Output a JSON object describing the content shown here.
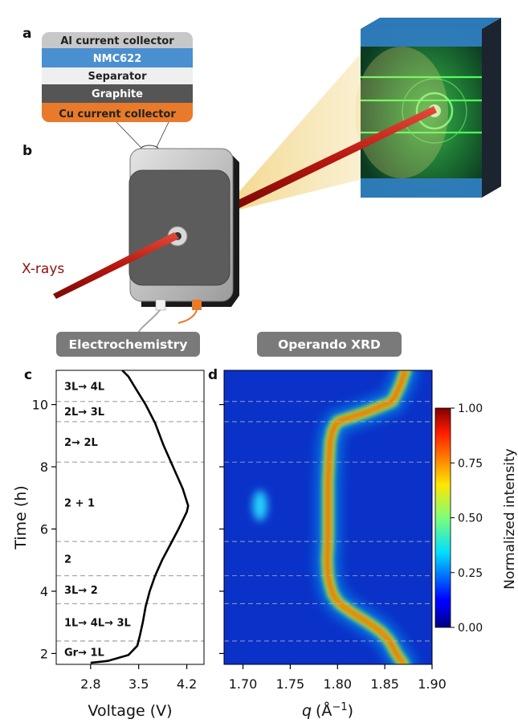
{
  "panels": {
    "a": "a",
    "b": "b",
    "c": "c",
    "d": "d"
  },
  "cell_stack": {
    "layers": [
      {
        "label": "Al current collector",
        "color": "#c8c8c8",
        "text_color": "#222222"
      },
      {
        "label": "NMC622",
        "color": "#4a8fd0",
        "text_color": "#ffffff"
      },
      {
        "label": "Separator",
        "color": "#efefef",
        "text_color": "#222222"
      },
      {
        "label": "Graphite",
        "color": "#555555",
        "text_color": "#ffffff"
      },
      {
        "label": "Cu current collector",
        "color": "#e87a2a",
        "text_color": "#222222"
      }
    ]
  },
  "labels": {
    "xrays": "X-rays",
    "electrochemistry": "Electrochemistry",
    "operando_xrd": "Operando XRD"
  },
  "chart_data": [
    {
      "type": "line",
      "panel": "c",
      "xlabel": "Voltage (V)",
      "ylabel": "Time (h)",
      "xlim": [
        2.3,
        4.45
      ],
      "ylim": [
        1.65,
        11.1
      ],
      "xticks": [
        "2.8",
        "3.5",
        "4.2"
      ],
      "yticks": [
        "2",
        "4",
        "6",
        "8",
        "10"
      ],
      "series": [
        {
          "x": [
            2.8,
            3.05,
            3.35,
            3.48,
            3.52,
            3.56,
            3.6,
            3.66,
            3.74,
            3.84,
            3.96,
            4.08,
            4.2,
            4.22,
            4.14,
            4.0,
            3.86,
            3.74,
            3.6,
            3.46,
            3.35,
            3.26
          ],
          "y": [
            1.7,
            1.76,
            1.95,
            2.25,
            2.6,
            3.0,
            3.5,
            4.0,
            4.5,
            5.0,
            5.5,
            6.0,
            6.55,
            6.75,
            7.3,
            8.0,
            8.7,
            9.4,
            10.0,
            10.5,
            10.9,
            11.1
          ]
        }
      ],
      "stage_boundaries": [
        2.4,
        3.6,
        4.5,
        5.6,
        8.15,
        9.45,
        10.1
      ],
      "stages": [
        {
          "label": "Gr→ 1L",
          "y": 2.05
        },
        {
          "label": "1L→ 4L→ 3L",
          "y": 3.0
        },
        {
          "label": "3L→ 2",
          "y": 4.05
        },
        {
          "label": "2",
          "y": 5.05
        },
        {
          "label": "2 + 1",
          "y": 6.85
        },
        {
          "label": "2→ 2L",
          "y": 8.8
        },
        {
          "label": "2L→ 3L",
          "y": 9.78
        },
        {
          "label": "3L→ 4L",
          "y": 10.6
        }
      ]
    },
    {
      "type": "heatmap",
      "panel": "d",
      "xlabel": "q (Å⁻¹)",
      "colorbar_label": "Normalized intensity",
      "xlim": [
        1.68,
        1.9
      ],
      "ylim": [
        1.65,
        11.1
      ],
      "xticks": [
        "1.70",
        "1.75",
        "1.80",
        "1.85",
        "1.90"
      ],
      "colorbar_ticks": [
        "0.00",
        "0.25",
        "0.50",
        "0.75",
        "1.00"
      ],
      "colorbar_range": [
        0,
        1
      ],
      "peak_trace": {
        "t": [
          1.65,
          2.0,
          2.4,
          2.7,
          3.0,
          3.3,
          3.6,
          3.9,
          4.2,
          4.5,
          5.0,
          5.6,
          6.5,
          7.5,
          8.15,
          8.8,
          9.2,
          9.45,
          9.75,
          10.1,
          10.6,
          11.1
        ],
        "q": [
          1.87,
          1.862,
          1.855,
          1.846,
          1.832,
          1.816,
          1.802,
          1.795,
          1.792,
          1.79,
          1.789,
          1.79,
          1.79,
          1.79,
          1.791,
          1.792,
          1.795,
          1.8,
          1.83,
          1.858,
          1.866,
          1.872
        ]
      },
      "secondary_peak": {
        "q": 1.718,
        "t": 6.75
      }
    }
  ],
  "colors": {
    "boundary": "#aaaaaa",
    "curve": "#000000",
    "pill": "#7a7a7a",
    "beam": "#c0392b",
    "heatmap_bg": "#0a32c8"
  }
}
